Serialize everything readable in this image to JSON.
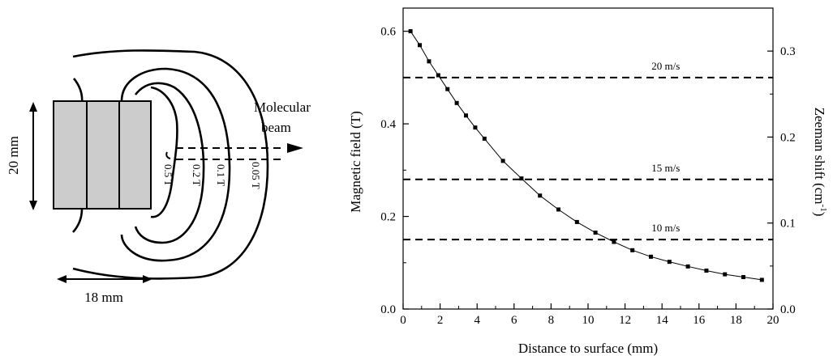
{
  "diagram": {
    "beam_label_line1": "Molecular",
    "beam_label_line2": "beam",
    "height_dim": "20 mm",
    "width_dim": "18 mm",
    "contours": [
      "0.5 T",
      "0.2 T",
      "0.1 T",
      "0.05 T"
    ]
  },
  "chart_data": {
    "type": "line",
    "title": "",
    "xlabel": "Distance to surface (mm)",
    "ylabel": "Magnetic field (T)",
    "y2label_prefix": "Zeeman shift (cm",
    "y2label_sup": "-1",
    "y2label_suffix": ")",
    "xlim": [
      0,
      20
    ],
    "ylim": [
      0,
      0.65
    ],
    "y2lim": [
      0,
      0.35
    ],
    "xticks": [
      "0",
      "2",
      "4",
      "6",
      "8",
      "10",
      "12",
      "14",
      "16",
      "18",
      "20"
    ],
    "yticks": [
      "0.0",
      "0.2",
      "0.4",
      "0.6"
    ],
    "y2ticks": [
      "0.0",
      "0.1",
      "0.2",
      "0.3"
    ],
    "grid": false,
    "series": [
      {
        "x": [
          0.4,
          0.9,
          1.4,
          1.9,
          2.4,
          2.9,
          3.4,
          3.9,
          4.4,
          5.4,
          6.4,
          7.4,
          8.4,
          9.4,
          10.4,
          11.4,
          12.4,
          13.4,
          14.4,
          15.4,
          16.4,
          17.4,
          18.4,
          19.4
        ],
        "values": [
          0.6,
          0.57,
          0.535,
          0.505,
          0.475,
          0.445,
          0.418,
          0.392,
          0.368,
          0.32,
          0.282,
          0.245,
          0.215,
          0.188,
          0.165,
          0.145,
          0.127,
          0.113,
          0.102,
          0.092,
          0.083,
          0.075,
          0.069,
          0.063
        ]
      }
    ],
    "thresholds": [
      {
        "label": "20 m/s",
        "value": 0.5
      },
      {
        "label": "15 m/s",
        "value": 0.28
      },
      {
        "label": "10 m/s",
        "value": 0.15
      }
    ]
  }
}
